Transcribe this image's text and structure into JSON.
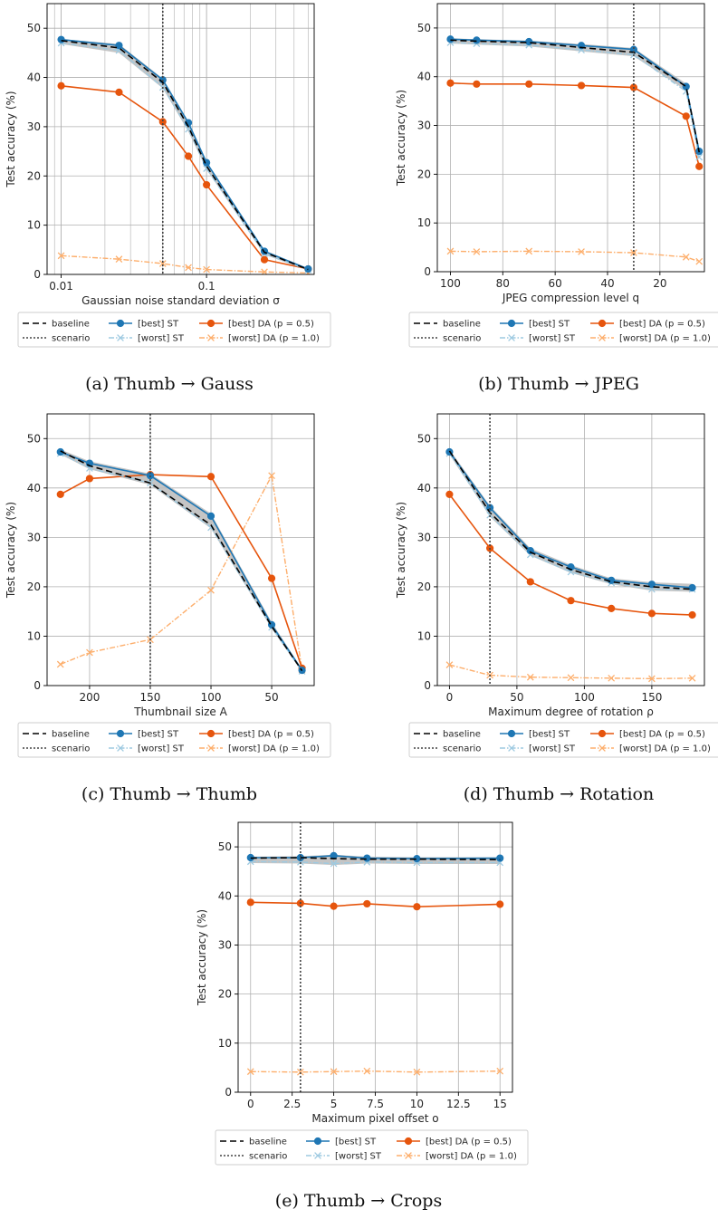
{
  "colors": {
    "baseline": "#000000",
    "scenario": "#444444",
    "best_st": "#1f77b4",
    "worst_st": "#9ecae1",
    "best_da": "#e6550d",
    "worst_da": "#fdae6b",
    "band": "#bbbbbb",
    "grid": "#b0b0b0"
  },
  "legend_labels": {
    "baseline": "baseline",
    "scenario": "scenario",
    "best_st": "[best] ST",
    "worst_st": "[worst] ST",
    "best_da": "[best] DA (p = 0.5)",
    "worst_da": "[worst] DA (p = 1.0)"
  },
  "chart_data": [
    {
      "type": "line",
      "caption": "(a) Thumb → Gauss",
      "xlabel": "Gaussian noise standard deviation σ",
      "ylabel": "Test accuracy (%)",
      "xscale": "log",
      "xlim": [
        0.008,
        0.55
      ],
      "ylim": [
        0,
        55
      ],
      "xtick_values": [
        0.01,
        0.1
      ],
      "xtick_labels": [
        "0.01",
        "0.1"
      ],
      "ytick_values": [
        0,
        10,
        20,
        30,
        40,
        50
      ],
      "ytick_labels": [
        "0",
        "10",
        "20",
        "30",
        "40",
        "50"
      ],
      "grid": true,
      "scenario_x": 0.05,
      "x": [
        0.01,
        0.025,
        0.05,
        0.075,
        0.1,
        0.25,
        0.5
      ],
      "series": [
        {
          "key": "baseline",
          "name": "baseline",
          "values": [
            47.5,
            46.0,
            39.0,
            30.0,
            22.0,
            4.5,
            1.0
          ]
        },
        {
          "key": "best_st",
          "name": "[best] ST",
          "values": [
            47.7,
            46.5,
            39.5,
            30.8,
            22.7,
            4.7,
            1.1
          ]
        },
        {
          "key": "worst_st",
          "name": "[worst] ST",
          "values": [
            47.0,
            45.5,
            38.0,
            29.5,
            21.5,
            4.2,
            0.9
          ]
        },
        {
          "key": "best_da",
          "name": "[best] DA (p = 0.5)",
          "values": [
            38.3,
            37.0,
            31.0,
            24.0,
            18.2,
            3.0,
            1.1
          ]
        },
        {
          "key": "worst_da",
          "name": "[worst] DA (p = 1.0)",
          "values": [
            3.8,
            3.1,
            2.2,
            1.4,
            1.0,
            0.5,
            0.3
          ]
        }
      ],
      "band": {
        "upper": [
          47.8,
          46.8,
          39.8,
          31.0,
          22.9,
          4.9,
          1.2
        ],
        "lower": [
          46.8,
          45.0,
          37.8,
          29.0,
          21.3,
          4.0,
          0.8
        ]
      },
      "legend_position": "below"
    },
    {
      "type": "line",
      "caption": "(b) Thumb → JPEG",
      "xlabel": "JPEG compression level q",
      "ylabel": "Test accuracy (%)",
      "xscale": "linear",
      "xreversed": true,
      "xlim": [
        105,
        3
      ],
      "ylim": [
        0,
        55
      ],
      "xtick_values": [
        100,
        80,
        60,
        40,
        20
      ],
      "xtick_labels": [
        "100",
        "80",
        "60",
        "40",
        "20"
      ],
      "ytick_values": [
        0,
        10,
        20,
        30,
        40,
        50
      ],
      "ytick_labels": [
        "0",
        "10",
        "20",
        "30",
        "40",
        "50"
      ],
      "grid": true,
      "scenario_x": 30,
      "x": [
        100,
        90,
        70,
        50,
        30,
        10,
        5
      ],
      "series": [
        {
          "key": "baseline",
          "name": "baseline",
          "values": [
            47.5,
            47.3,
            47.0,
            46.0,
            45.0,
            38.0,
            24.5
          ]
        },
        {
          "key": "best_st",
          "name": "[best] ST",
          "values": [
            47.7,
            47.5,
            47.2,
            46.4,
            45.6,
            38.0,
            24.7
          ]
        },
        {
          "key": "worst_st",
          "name": "[worst] ST",
          "values": [
            47.0,
            46.8,
            46.5,
            45.5,
            44.5,
            37.0,
            23.5
          ]
        },
        {
          "key": "best_da",
          "name": "[best] DA (p = 0.5)",
          "values": [
            38.7,
            38.5,
            38.5,
            38.2,
            37.8,
            31.9,
            21.6
          ]
        },
        {
          "key": "worst_da",
          "name": "[worst] DA (p = 1.0)",
          "values": [
            4.2,
            4.1,
            4.2,
            4.1,
            3.9,
            3.0,
            2.1
          ]
        }
      ],
      "band": {
        "upper": [
          47.9,
          47.7,
          47.4,
          46.7,
          45.9,
          38.6,
          25.0
        ],
        "lower": [
          46.8,
          46.6,
          46.2,
          45.2,
          44.2,
          37.2,
          23.3
        ]
      },
      "legend_position": "below"
    },
    {
      "type": "line",
      "caption": "(c) Thumb → Thumb",
      "xlabel": "Thumbnail size A",
      "ylabel": "Test accuracy (%)",
      "xscale": "linear",
      "xreversed": true,
      "xlim": [
        235,
        15
      ],
      "ylim": [
        0,
        55
      ],
      "xtick_values": [
        200,
        150,
        100,
        50
      ],
      "xtick_labels": [
        "200",
        "150",
        "100",
        "50"
      ],
      "ytick_values": [
        0,
        10,
        20,
        30,
        40,
        50
      ],
      "ytick_labels": [
        "0",
        "10",
        "20",
        "30",
        "40",
        "50"
      ],
      "grid": true,
      "scenario_x": 150,
      "x": [
        224,
        200,
        150,
        100,
        50,
        25
      ],
      "series": [
        {
          "key": "baseline",
          "name": "baseline",
          "values": [
            47.5,
            44.5,
            41.0,
            32.5,
            12.0,
            3.0
          ]
        },
        {
          "key": "best_st",
          "name": "[best] ST",
          "values": [
            47.3,
            45.0,
            42.5,
            34.3,
            12.3,
            3.1
          ]
        },
        {
          "key": "worst_st",
          "name": "[worst] ST",
          "values": [
            47.0,
            44.0,
            41.0,
            32.0,
            11.8,
            2.9
          ]
        },
        {
          "key": "best_da",
          "name": "[best] DA (p = 0.5)",
          "values": [
            38.7,
            41.9,
            42.7,
            42.3,
            21.7,
            3.5
          ]
        },
        {
          "key": "worst_da",
          "name": "[worst] DA (p = 1.0)",
          "values": [
            4.3,
            6.7,
            9.3,
            19.3,
            42.5,
            3.2
          ]
        }
      ],
      "band": {
        "upper": [
          47.8,
          45.4,
          42.9,
          34.8,
          12.8,
          3.3
        ],
        "lower": [
          46.8,
          43.8,
          40.6,
          31.8,
          11.5,
          2.8
        ]
      },
      "legend_position": "below"
    },
    {
      "type": "line",
      "caption": "(d) Thumb → Rotation",
      "xlabel": "Maximum degree of rotation ρ",
      "ylabel": "Test accuracy (%)",
      "xscale": "linear",
      "xlim": [
        -9,
        189
      ],
      "ylim": [
        0,
        55
      ],
      "xtick_values": [
        0,
        50,
        100,
        150
      ],
      "xtick_labels": [
        "0",
        "50",
        "100",
        "150"
      ],
      "ytick_values": [
        0,
        10,
        20,
        30,
        40,
        50
      ],
      "ytick_labels": [
        "0",
        "10",
        "20",
        "30",
        "40",
        "50"
      ],
      "grid": true,
      "scenario_x": 30,
      "x": [
        0,
        30,
        60,
        90,
        120,
        150,
        180
      ],
      "series": [
        {
          "key": "baseline",
          "name": "baseline",
          "values": [
            47.5,
            35.0,
            27.0,
            23.5,
            21.0,
            20.0,
            19.5
          ]
        },
        {
          "key": "best_st",
          "name": "[best] ST",
          "values": [
            47.3,
            36.0,
            27.3,
            24.0,
            21.3,
            20.5,
            19.8
          ]
        },
        {
          "key": "worst_st",
          "name": "[worst] ST",
          "values": [
            47.0,
            34.5,
            26.5,
            23.0,
            20.8,
            19.5,
            19.5
          ]
        },
        {
          "key": "best_da",
          "name": "[best] DA (p = 0.5)",
          "values": [
            38.7,
            27.8,
            21.0,
            17.2,
            15.6,
            14.6,
            14.3
          ]
        },
        {
          "key": "worst_da",
          "name": "[worst] DA (p = 1.0)",
          "values": [
            4.2,
            2.1,
            1.7,
            1.6,
            1.5,
            1.4,
            1.5
          ]
        }
      ],
      "band": {
        "upper": [
          47.8,
          36.4,
          27.8,
          24.4,
          21.7,
          20.9,
          20.6
        ],
        "lower": [
          46.8,
          34.2,
          26.3,
          22.8,
          20.5,
          19.2,
          19.0
        ]
      },
      "legend_position": "below"
    },
    {
      "type": "line",
      "caption": "(e) Thumb → Crops",
      "xlabel": "Maximum pixel offset o",
      "ylabel": "Test accuracy (%)",
      "xscale": "linear",
      "xlim": [
        -0.75,
        15.75
      ],
      "ylim": [
        0,
        55
      ],
      "xtick_values": [
        0,
        2.5,
        5,
        7.5,
        10,
        12.5,
        15
      ],
      "xtick_labels": [
        "0",
        "2.5",
        "5",
        "7.5",
        "10",
        "12.5",
        "15"
      ],
      "ytick_values": [
        0,
        10,
        20,
        30,
        40,
        50
      ],
      "ytick_labels": [
        "0",
        "10",
        "20",
        "30",
        "40",
        "50"
      ],
      "grid": true,
      "scenario_x": 3,
      "x": [
        0,
        3,
        5,
        7,
        10,
        15
      ],
      "series": [
        {
          "key": "baseline",
          "name": "baseline",
          "values": [
            47.7,
            47.8,
            47.6,
            47.5,
            47.5,
            47.4
          ]
        },
        {
          "key": "best_st",
          "name": "[best] ST",
          "values": [
            47.8,
            47.8,
            48.2,
            47.7,
            47.6,
            47.7
          ]
        },
        {
          "key": "worst_st",
          "name": "[worst] ST",
          "values": [
            47.0,
            46.9,
            46.6,
            46.9,
            46.8,
            46.8
          ]
        },
        {
          "key": "best_da",
          "name": "[best] DA (p = 0.5)",
          "values": [
            38.7,
            38.5,
            37.9,
            38.4,
            37.8,
            38.3
          ]
        },
        {
          "key": "worst_da",
          "name": "[worst] DA (p = 1.0)",
          "values": [
            4.2,
            4.1,
            4.2,
            4.3,
            4.1,
            4.3
          ]
        }
      ],
      "band": {
        "upper": [
          48.0,
          48.1,
          48.4,
          48.0,
          47.9,
          47.9
        ],
        "lower": [
          46.7,
          46.6,
          46.3,
          46.6,
          46.5,
          46.5
        ]
      },
      "legend_position": "below"
    }
  ]
}
